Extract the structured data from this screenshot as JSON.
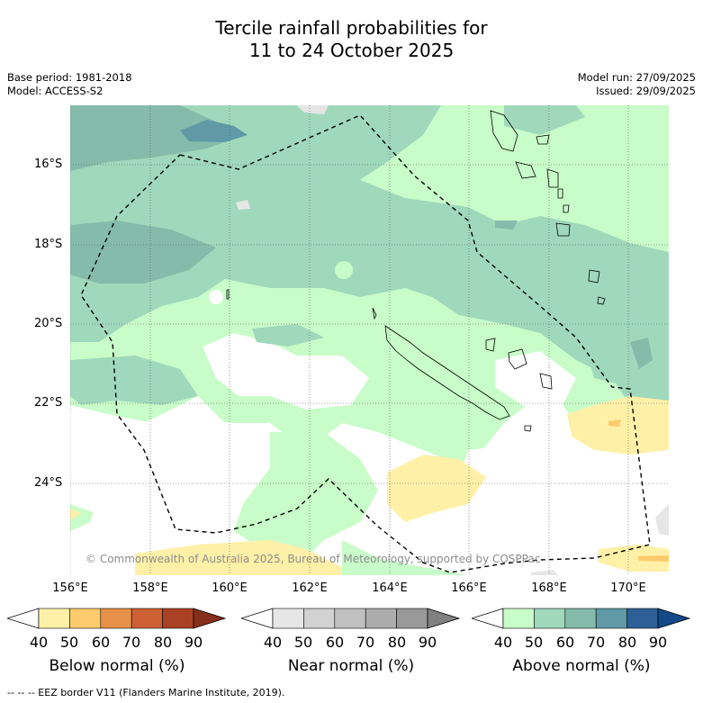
{
  "title": {
    "line1": "Tercile rainfall probabilities for",
    "line2": "11 to 24 October 2025"
  },
  "meta": {
    "base_period": "Base period: 1981-2018",
    "model": "Model: ACCESS-S2",
    "model_run": "Model run: 27/09/2025",
    "issued": "Issued: 29/09/2025"
  },
  "axes": {
    "lat_labels": [
      "16°S",
      "18°S",
      "20°S",
      "22°S",
      "24°S"
    ],
    "lon_labels": [
      "156°E",
      "158°E",
      "160°E",
      "162°E",
      "164°E",
      "166°E",
      "168°E",
      "170°E"
    ]
  },
  "copyright": "© Commonwealth of Australia 2025, Bureau of Meteorology, supported by COSPPac",
  "colorbars": [
    {
      "title": "Below normal (%)",
      "ticks": [
        "40",
        "50",
        "60",
        "70",
        "80",
        "90"
      ],
      "colors": [
        "#ffffff",
        "#fff0a8",
        "#fdcb6e",
        "#e6904a",
        "#cd6034",
        "#aa4124",
        "#852e1c"
      ]
    },
    {
      "title": "Near normal (%)",
      "ticks": [
        "40",
        "50",
        "60",
        "70",
        "80",
        "90"
      ],
      "colors": [
        "#ffffff",
        "#e6e6e6",
        "#d2d2d2",
        "#c0c0c0",
        "#acacac",
        "#999999",
        "#808080"
      ]
    },
    {
      "title": "Above normal (%)",
      "ticks": [
        "40",
        "50",
        "60",
        "70",
        "80",
        "90"
      ],
      "colors": [
        "#ffffff",
        "#c8fcc8",
        "#a0d8bc",
        "#85bbaa",
        "#5f9aa6",
        "#2e6097",
        "#124a88"
      ]
    }
  ],
  "legend_footer": "--  --  -- EEZ border V11 (Flanders Marine Institute, 2019).",
  "map_colors": {
    "below_50": "#fff0a8",
    "below_60": "#fdcb6e",
    "near_50": "#e6e6e6",
    "above_50": "#c8fcc8",
    "above_60": "#a0d8bc",
    "above_70": "#85bbaa",
    "above_80": "#5f9aa6"
  }
}
